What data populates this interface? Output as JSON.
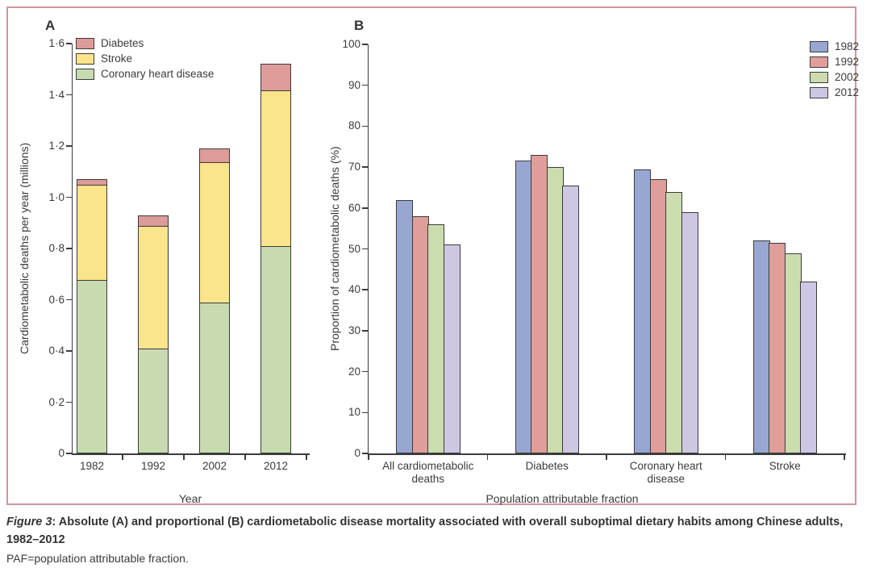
{
  "figure": {
    "caption": {
      "figure_label": "Figure 3",
      "title_rest": ": Absolute (A) and proportional (B) cardiometabolic disease mortality associated with overall suboptimal dietary habits among Chinese adults,",
      "title_line2": "1982–2012",
      "footnote": "PAF=population attributable fraction."
    }
  },
  "chart_data": [
    {
      "panel": "A",
      "type": "bar",
      "subtype": "stacked",
      "title": "",
      "xlabel": "Year",
      "ylabel": "Cardiometabolic deaths per year (millions)",
      "ylim": [
        0,
        1.6
      ],
      "grid": false,
      "yticks": [
        0,
        0.2,
        0.4,
        0.6,
        0.8,
        1.0,
        1.2,
        1.4,
        1.6
      ],
      "ytick_labels": [
        "0",
        "0·2",
        "0·4",
        "0·6",
        "0·8",
        "1·0",
        "1·2",
        "1·4",
        "1·6"
      ],
      "categories": [
        "1982",
        "1992",
        "2002",
        "2012"
      ],
      "series": [
        {
          "name": "Coronary heart disease",
          "color": "#c8dbb0",
          "values": [
            0.68,
            0.41,
            0.59,
            0.81
          ]
        },
        {
          "name": "Stroke",
          "color": "#fae48c",
          "values": [
            0.37,
            0.48,
            0.55,
            0.61
          ]
        },
        {
          "name": "Diabetes",
          "color": "#dd9b99",
          "values": [
            0.02,
            0.04,
            0.05,
            0.1
          ]
        }
      ],
      "stack_totals": [
        1.07,
        0.93,
        1.19,
        1.52
      ],
      "legend": {
        "position": "top-left",
        "order": [
          "Diabetes",
          "Stroke",
          "Coronary heart disease"
        ]
      }
    },
    {
      "panel": "B",
      "type": "bar",
      "subtype": "grouped",
      "title": "",
      "xlabel": "Population attributable fraction",
      "ylabel": "Proportion of cardiometabolic deaths (%)",
      "ylim": [
        0,
        100
      ],
      "grid": false,
      "yticks": [
        0,
        10,
        20,
        30,
        40,
        50,
        60,
        70,
        80,
        90,
        100
      ],
      "ytick_labels": [
        "0",
        "10",
        "20",
        "30",
        "40",
        "50",
        "60",
        "70",
        "80",
        "90",
        "100"
      ],
      "categories": [
        "All cardiometabolic deaths",
        "Diabetes",
        "Coronary heart disease",
        "Stroke"
      ],
      "series": [
        {
          "name": "1982",
          "color": "#98a7d2",
          "values": [
            62,
            71.5,
            69.5,
            52
          ]
        },
        {
          "name": "1992",
          "color": "#df9e99",
          "values": [
            58,
            73,
            67,
            51.5
          ]
        },
        {
          "name": "2002",
          "color": "#cbdcae",
          "values": [
            56,
            70,
            64,
            49
          ]
        },
        {
          "name": "2012",
          "color": "#cec7e4",
          "values": [
            51,
            65.5,
            59,
            42
          ]
        }
      ],
      "legend": {
        "position": "top-right",
        "order": [
          "1982",
          "1992",
          "2002",
          "2012"
        ]
      }
    }
  ],
  "style": {
    "frame_border_color": "#d2949d",
    "bar_border_color": "#3b3b3b",
    "axis_color": "#3b3b3b"
  }
}
